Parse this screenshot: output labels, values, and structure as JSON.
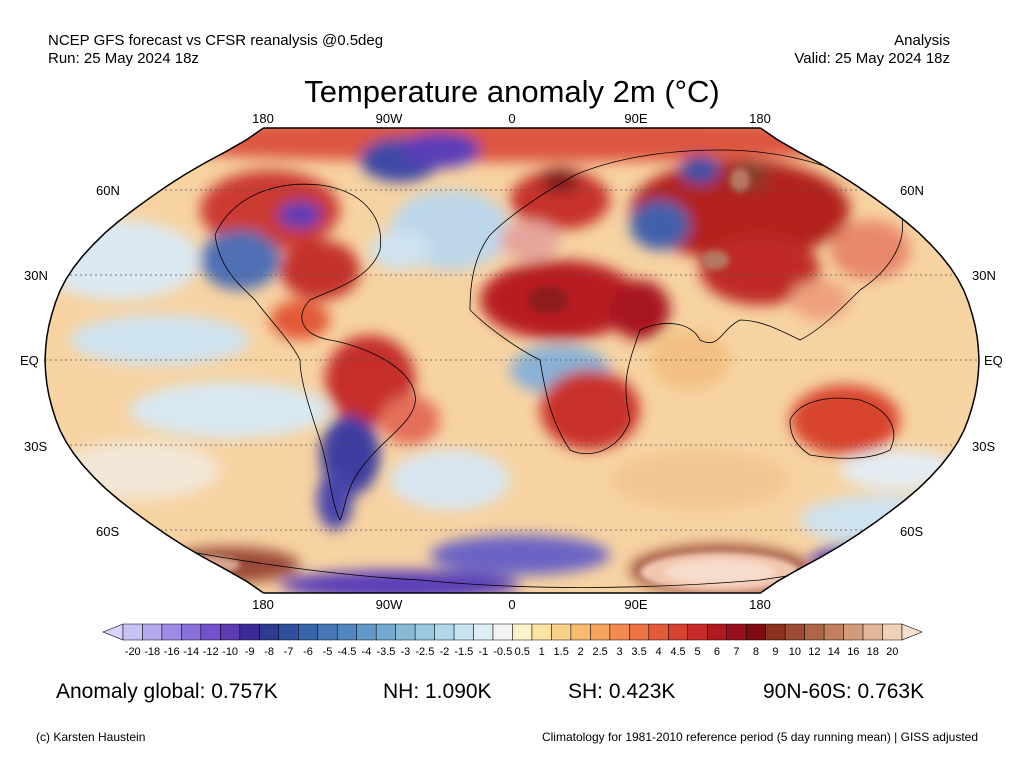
{
  "header": {
    "line1_left": "NCEP GFS forecast vs CFSR reanalysis @0.5deg",
    "line2_left": "Run: 25 May 2024 18z",
    "line1_right": "Analysis",
    "line2_right": "Valid: 25 May 2024 18z"
  },
  "title": "Temperature anomaly 2m (°C)",
  "lon_labels_top": [
    "180",
    "90W",
    "0",
    "90E",
    "180"
  ],
  "lon_labels_bottom": [
    "180",
    "90W",
    "0",
    "90E",
    "180"
  ],
  "lat_labels_left": [
    "60N",
    "30N",
    "EQ",
    "30S",
    "60S"
  ],
  "lat_labels_right": [
    "60N",
    "30N",
    "EQ",
    "30S",
    "60S"
  ],
  "colorbar": {
    "ticks": [
      "-20",
      "-18",
      "-16",
      "-14",
      "-12",
      "-10",
      "-9",
      "-8",
      "-7",
      "-6",
      "-5",
      "-4.5",
      "-4",
      "-3.5",
      "-3",
      "-2.5",
      "-2",
      "-1.5",
      "-1",
      "-0.5",
      "0.5",
      "1",
      "1.5",
      "2",
      "2.5",
      "3",
      "3.5",
      "4",
      "4.5",
      "5",
      "6",
      "7",
      "8",
      "9",
      "10",
      "12",
      "14",
      "16",
      "18",
      "20"
    ],
    "colors": [
      "#c7c3f2",
      "#b4aaee",
      "#a08ce6",
      "#8a70dc",
      "#7452cc",
      "#5e3cb5",
      "#3f2a99",
      "#2e3a8f",
      "#30509f",
      "#3864aa",
      "#4477b4",
      "#5288bd",
      "#6299c6",
      "#74aacf",
      "#88bad8",
      "#9cc9e0",
      "#b2d7e8",
      "#c8e4f0",
      "#dceff7",
      "#f4f4f4",
      "#fdf1c8",
      "#fbe2a2",
      "#f9d088",
      "#f7bb70",
      "#f4a45e",
      "#f18c50",
      "#ec7444",
      "#e45b3a",
      "#d84230",
      "#c82b28",
      "#b21a22",
      "#980f1d",
      "#7e0a14",
      "#8c3320",
      "#9c4c32",
      "#ae6648",
      "#c0815f",
      "#d29c7b",
      "#e2b799",
      "#f0d2b8"
    ]
  },
  "stats": {
    "global": "Anomaly global: 0.757K",
    "nh": "NH: 1.090K",
    "sh": "SH: 0.423K",
    "arctic": "90N-60S: 0.763K"
  },
  "footer": {
    "left": "(c) Karsten Haustein",
    "right": "Climatology for 1981-2010 reference period (5 day running mean) | GISS adjusted"
  },
  "map_colors": {
    "warm_ocean": "#f7d09a",
    "cool_ocean": "#cfe2f0",
    "hot": "#c8282a",
    "very_hot": "#8e1a1a",
    "cold": "#3a4fa6",
    "very_cold": "#5a3cb8",
    "extreme_warm": "#b57760"
  }
}
